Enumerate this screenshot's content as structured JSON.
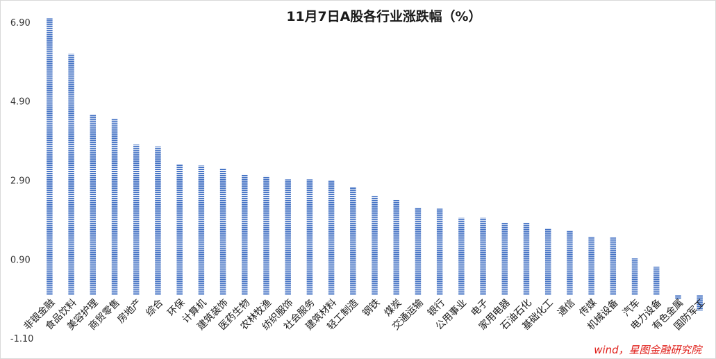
{
  "chart_data": {
    "type": "bar",
    "title": "11月7日A股各行业涨跌幅（%）",
    "xlabel": "",
    "ylabel": "",
    "ylim": [
      -1.1,
      6.9
    ],
    "yticks": [
      6.9,
      4.9,
      2.9,
      0.9,
      -1.1
    ],
    "ytick_labels": [
      "6.90",
      "4.90",
      "2.90",
      "0.90",
      "-1.10"
    ],
    "grid": false,
    "legend": "none",
    "bar_color": "#4472c4",
    "bar_pattern": "horizontal-stripes",
    "categories": [
      "非银金融",
      "食品饮料",
      "美容护理",
      "商贸零售",
      "房地产",
      "综合",
      "环保",
      "计算机",
      "建筑装饰",
      "医药生物",
      "农林牧渔",
      "纺织服饰",
      "社会服务",
      "建筑材料",
      "轻工制造",
      "钢铁",
      "煤炭",
      "交通运输",
      "银行",
      "公用事业",
      "电子",
      "家用电器",
      "石油石化",
      "基础化工",
      "通信",
      "传媒",
      "机械设备",
      "汽车",
      "电力设备",
      "有色金属",
      "国防军工"
    ],
    "values": [
      7.0,
      6.1,
      4.55,
      4.45,
      3.8,
      3.75,
      3.3,
      3.27,
      3.2,
      3.05,
      3.0,
      2.92,
      2.92,
      2.9,
      2.72,
      2.5,
      2.4,
      2.2,
      2.18,
      1.95,
      1.95,
      1.82,
      1.82,
      1.68,
      1.62,
      1.47,
      1.45,
      0.92,
      0.71,
      -0.1,
      -0.4
    ]
  },
  "source": "wind，星图金融研究院"
}
